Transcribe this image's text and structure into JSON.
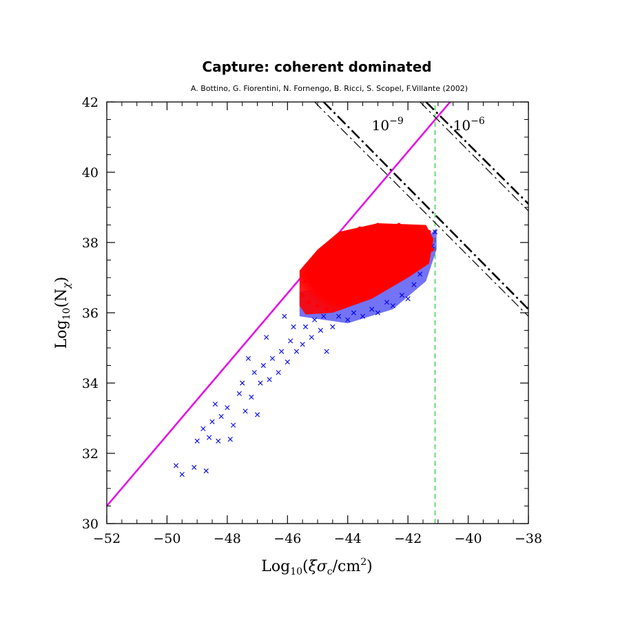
{
  "chart_data": {
    "type": "scatter",
    "title": "Capture: coherent dominated",
    "subtitle": "A. Bottino, G. Fiorentini, N. Fornengo, B. Ricci, S. Scopel, F.Villante (2002)",
    "xlabel_parts": {
      "base": "Log",
      "sub": "10",
      "open": "(",
      "xi": "ξ",
      "sigma": "σ",
      "sigma_sub": "c",
      "unit": "/cm",
      "unit_sup": "2",
      "close": ")"
    },
    "ylabel_parts": {
      "base": "Log",
      "sub": "10",
      "open": "(N",
      "chi": "χ",
      "close": ")"
    },
    "xlim": [
      -52,
      -38
    ],
    "ylim": [
      30,
      42
    ],
    "x_ticks": [
      -52,
      -50,
      -48,
      -46,
      -44,
      -42,
      -40,
      -38
    ],
    "x_tick_labels": [
      "−52",
      "−50",
      "−48",
      "−46",
      "−44",
      "−42",
      "−40",
      "−38"
    ],
    "y_ticks": [
      30,
      32,
      34,
      36,
      38,
      40,
      42
    ],
    "y_tick_labels": [
      "30",
      "32",
      "34",
      "36",
      "38",
      "40",
      "42"
    ],
    "grid": false,
    "annotations": [
      {
        "base": "10",
        "exp": "−9",
        "x": -43.2,
        "y": 41.2
      },
      {
        "base": "10",
        "exp": "−6",
        "x": -40.5,
        "y": 41.2
      }
    ],
    "reference_lines": [
      {
        "name": "upper bound",
        "color": "#e600e6",
        "style": "solid",
        "x": [
          -52,
          -40.6
        ],
        "y": [
          30.5,
          42
        ]
      },
      {
        "name": "vertical limit",
        "color": "#2ecc40",
        "style": "dashed",
        "x": [
          -41.1,
          -41.1
        ],
        "y": [
          30,
          42
        ]
      },
      {
        "name": "10^-9 a",
        "color": "#000000",
        "style": "dash-dot-thick",
        "x": [
          -44.8,
          -38
        ],
        "y": [
          42,
          36.1
        ]
      },
      {
        "name": "10^-9 b",
        "color": "#000000",
        "style": "dash-dot-thin",
        "x": [
          -45.1,
          -38
        ],
        "y": [
          42,
          35.9
        ]
      },
      {
        "name": "10^-6 a",
        "color": "#000000",
        "style": "dash-dot-thick",
        "x": [
          -41.4,
          -38
        ],
        "y": [
          42,
          39.1
        ]
      },
      {
        "name": "10^-6 b",
        "color": "#000000",
        "style": "dash-dot-thin",
        "x": [
          -41.6,
          -38
        ],
        "y": [
          42,
          38.9
        ]
      }
    ],
    "series": [
      {
        "marker": "x",
        "color": "#0000ee",
        "points": [
          [
            -49.7,
            31.65
          ],
          [
            -49.5,
            31.4
          ],
          [
            -49.1,
            31.6
          ],
          [
            -48.7,
            31.5
          ],
          [
            -49.0,
            32.35
          ],
          [
            -48.8,
            32.7
          ],
          [
            -48.6,
            32.45
          ],
          [
            -48.5,
            32.9
          ],
          [
            -48.4,
            33.4
          ],
          [
            -48.2,
            33.05
          ],
          [
            -48.3,
            32.35
          ],
          [
            -48.0,
            33.3
          ],
          [
            -47.8,
            32.8
          ],
          [
            -47.6,
            33.7
          ],
          [
            -47.5,
            34.0
          ],
          [
            -47.4,
            33.2
          ],
          [
            -47.2,
            33.6
          ],
          [
            -47.1,
            34.3
          ],
          [
            -47.0,
            33.1
          ],
          [
            -46.9,
            34.0
          ],
          [
            -46.8,
            34.5
          ],
          [
            -46.6,
            34.1
          ],
          [
            -46.5,
            34.7
          ],
          [
            -46.3,
            34.3
          ],
          [
            -46.2,
            34.9
          ],
          [
            -46.0,
            34.6
          ],
          [
            -45.9,
            35.2
          ],
          [
            -45.8,
            35.6
          ],
          [
            -45.7,
            34.9
          ],
          [
            -45.5,
            35.1
          ],
          [
            -45.4,
            35.6
          ],
          [
            -45.2,
            35.3
          ],
          [
            -45.1,
            35.8
          ],
          [
            -44.9,
            35.5
          ],
          [
            -44.8,
            35.9
          ],
          [
            -44.7,
            34.9
          ],
          [
            -44.5,
            35.6
          ],
          [
            -44.3,
            35.9
          ],
          [
            -44.0,
            35.8
          ],
          [
            -43.8,
            36.0
          ],
          [
            -43.5,
            35.9
          ],
          [
            -43.2,
            36.1
          ],
          [
            -43.0,
            36.0
          ],
          [
            -42.7,
            36.3
          ],
          [
            -42.5,
            36.2
          ],
          [
            -42.2,
            36.5
          ],
          [
            -42.0,
            36.4
          ],
          [
            -41.8,
            36.8
          ],
          [
            -41.6,
            37.1
          ],
          [
            -41.4,
            37.5
          ],
          [
            -41.2,
            37.9
          ],
          [
            -41.1,
            38.3
          ],
          [
            -41.3,
            38.1
          ],
          [
            -41.5,
            37.8
          ],
          [
            -42.0,
            37.2
          ],
          [
            -47.9,
            32.4
          ],
          [
            -47.3,
            34.7
          ],
          [
            -46.7,
            35.3
          ],
          [
            -46.1,
            35.9
          ]
        ]
      },
      {
        "marker": "dot",
        "color": "#ff0000",
        "points": [
          [
            -45.5,
            36.5
          ],
          [
            -45.3,
            36.3
          ],
          [
            -45.0,
            36.2
          ],
          [
            -44.7,
            36.1
          ],
          [
            -44.3,
            36.3
          ],
          [
            -44.0,
            36.4
          ],
          [
            -43.5,
            36.5
          ],
          [
            -43.0,
            36.7
          ],
          [
            -42.5,
            36.9
          ],
          [
            -42.0,
            37.1
          ],
          [
            -41.5,
            37.4
          ],
          [
            -41.2,
            37.8
          ],
          [
            -41.3,
            38.3
          ],
          [
            -41.7,
            38.4
          ],
          [
            -42.3,
            38.5
          ],
          [
            -43.0,
            38.5
          ],
          [
            -43.6,
            38.4
          ],
          [
            -44.2,
            38.2
          ],
          [
            -44.7,
            37.8
          ],
          [
            -45.1,
            37.3
          ],
          [
            -45.4,
            36.9
          ],
          [
            -44.5,
            37.2
          ],
          [
            -43.8,
            37.5
          ],
          [
            -43.2,
            37.8
          ],
          [
            -42.6,
            37.9
          ],
          [
            -42.1,
            37.8
          ],
          [
            -44.0,
            36.9
          ],
          [
            -43.4,
            37.2
          ],
          [
            -42.8,
            37.4
          ],
          [
            -44.8,
            36.8
          ]
        ]
      }
    ]
  }
}
